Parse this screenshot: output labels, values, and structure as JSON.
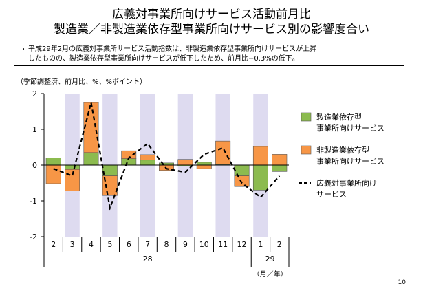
{
  "title_line1": "広義対事業所向けサービス活動前月比",
  "title_line2": "製造業／非製造業依存型事業所向けサービス別の影響度合い",
  "note_bullet": "・",
  "note_line1": "平成29年2月の広義対事業所サービス活動指数は、非製造業依存型事業所向けサービスが上昇",
  "note_line2": "したものの、製造業依存型事業所向けサービスが低下したため、前月比−0.3%の低下。",
  "units_label": "（季節調整済、前月比、%、%ポイント）",
  "page_number": "10",
  "colors": {
    "manufacturing": "#8cbb4f",
    "non_manufacturing": "#f79646",
    "line": "#000000",
    "shade": "#dedbf0"
  },
  "chart_data": {
    "type": "bar",
    "stacked": true,
    "categories": [
      "2",
      "3",
      "4",
      "5",
      "6",
      "7",
      "8",
      "9",
      "10",
      "11",
      "12",
      "1",
      "2"
    ],
    "year_labels": [
      {
        "label": "28",
        "from": 0,
        "to": 10
      },
      {
        "label": "29",
        "from": 11,
        "to": 12
      }
    ],
    "x_unit_label": "（月／年）",
    "shaded_categories": [
      1,
      3,
      5,
      7,
      9,
      11
    ],
    "ylim": [
      -2,
      2
    ],
    "yticks": [
      -2,
      -1,
      0,
      1,
      2
    ],
    "grid": false,
    "legend_position": "right",
    "series": [
      {
        "name": "製造業依存型\n事業所向けサービス",
        "kind": "bar",
        "values": [
          0.2,
          -0.12,
          0.35,
          -0.3,
          0.18,
          0.14,
          0.06,
          -0.03,
          0.08,
          0.02,
          -0.3,
          -0.7,
          -0.18
        ]
      },
      {
        "name": "非製造業依存型\n事業所向けサービス",
        "kind": "bar",
        "values": [
          -0.52,
          -0.6,
          1.4,
          -0.55,
          0.22,
          0.15,
          -0.15,
          0.16,
          -0.1,
          0.65,
          -0.3,
          0.52,
          0.3
        ]
      },
      {
        "name": "広義対事業所向け\nサービス",
        "kind": "line",
        "values": [
          -0.1,
          -0.3,
          1.75,
          -1.2,
          0.2,
          0.6,
          -0.1,
          -0.2,
          0.3,
          0.48,
          -0.5,
          -0.9,
          -0.3
        ]
      }
    ]
  }
}
